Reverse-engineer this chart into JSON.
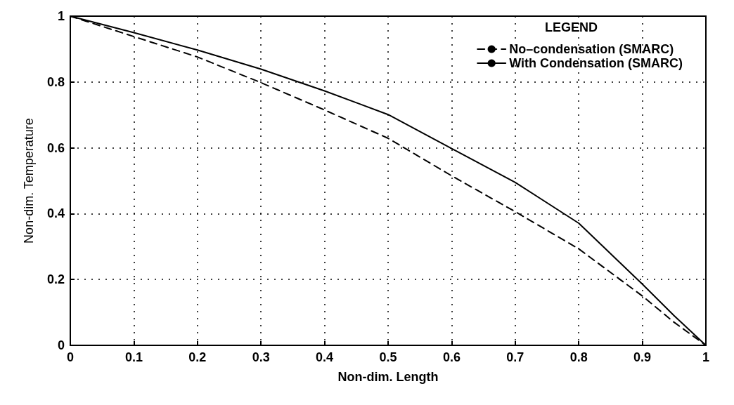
{
  "chart_data": {
    "type": "line",
    "xlabel": "Non-dim. Length",
    "ylabel": "Non-dim. Temperature",
    "legend_title": "LEGEND",
    "legend": "top right",
    "grid": true,
    "marker": "none",
    "x": [
      0,
      0.1,
      0.2,
      0.3,
      0.4,
      0.5,
      0.6,
      0.7,
      0.8,
      0.9,
      0.95,
      1
    ],
    "series": [
      {
        "name": "No–condensation (SMARC)",
        "color": "#000000",
        "line_style": "dashed",
        "values": [
          1,
          0.938,
          0.876,
          0.798,
          0.715,
          0.629,
          0.515,
          0.406,
          0.293,
          0.15,
          0.07,
          0
        ]
      },
      {
        "name": "With Condensation (SMARC)",
        "color": "#000000",
        "line_style": "solid",
        "values": [
          1,
          0.95,
          0.897,
          0.839,
          0.773,
          0.701,
          0.598,
          0.495,
          0.371,
          0.186,
          0.09,
          0
        ]
      }
    ],
    "xlim": [
      0,
      1
    ],
    "xticks": [
      0,
      0.1,
      0.2,
      0.3,
      0.4,
      0.5,
      0.6,
      0.7,
      0.8,
      0.9,
      1
    ],
    "ylim": [
      0,
      1
    ],
    "yticks": [
      0,
      0.2,
      0.4,
      0.6,
      0.8,
      1
    ]
  }
}
